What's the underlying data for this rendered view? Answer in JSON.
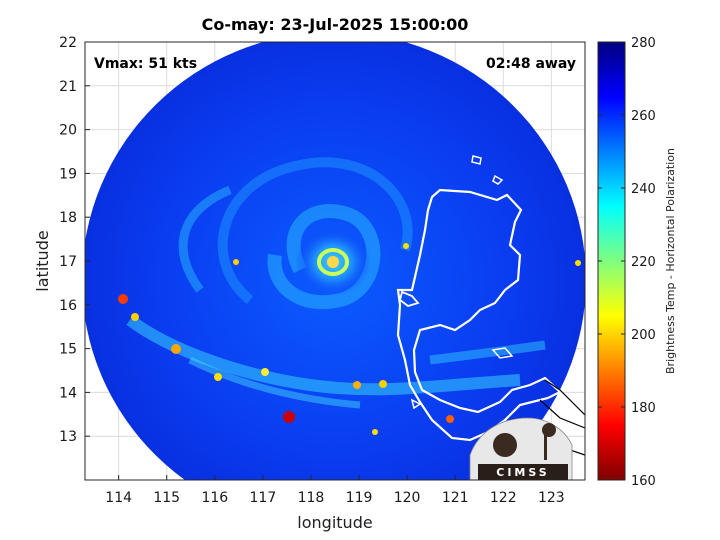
{
  "chart_data": {
    "type": "heatmap",
    "title": "Co-may: 23-Jul-2025 15:00:00",
    "xlabel": "longitude",
    "ylabel": "latitude",
    "xlim": [
      113.3,
      123.7
    ],
    "ylim": [
      12.0,
      22.0
    ],
    "xticks": [
      "114",
      "115",
      "116",
      "117",
      "118",
      "119",
      "120",
      "121",
      "122",
      "123"
    ],
    "yticks": [
      "13",
      "14",
      "15",
      "16",
      "17",
      "18",
      "19",
      "20",
      "21",
      "22"
    ],
    "grid": true,
    "annotations": {
      "vmax": "Vmax: 51 kts",
      "time_away": "02:48 away"
    },
    "colorbar": {
      "label": "Brightness Temp - Horizontal Polarization",
      "range": [
        160,
        280
      ],
      "ticks": [
        "160",
        "180",
        "200",
        "220",
        "240",
        "260",
        "280"
      ],
      "colormap": "jet"
    },
    "storm_center": {
      "lon": 118.3,
      "lat": 16.95
    },
    "logo_text": "CIMSS"
  },
  "colors": {
    "background_field": "#0a3cf0",
    "coastline": "#ffffff",
    "coastline_outside": "#000000"
  }
}
